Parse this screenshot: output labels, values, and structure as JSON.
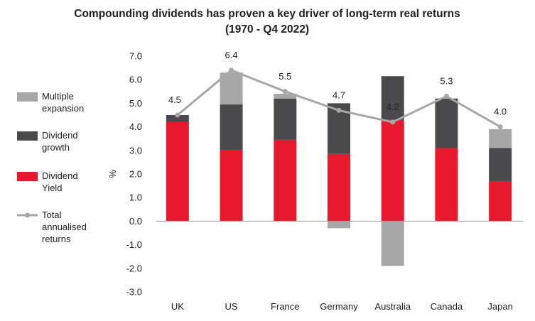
{
  "chart_data": {
    "type": "bar",
    "title_line1": "Compounding dividends has proven a key driver of long-term real returns",
    "title_line2": "(1970 - Q4 2022)",
    "ylabel": "%",
    "ylim": [
      -3.0,
      7.0
    ],
    "yticks": [
      "7.0",
      "6.0",
      "5.0",
      "4.0",
      "3.0",
      "2.0",
      "1.0",
      "0.0",
      "-1.0",
      "-2.0",
      "-3.0"
    ],
    "categories": [
      "UK",
      "US",
      "France",
      "Germany",
      "Australia",
      "Canada",
      "Japan"
    ],
    "series": [
      {
        "name": "Dividend Yield",
        "color": "#e8192c",
        "values": [
          4.2,
          3.0,
          3.45,
          2.85,
          4.3,
          3.1,
          1.7
        ]
      },
      {
        "name": "Dividend growth",
        "color": "#4a4a4d",
        "values": [
          0.3,
          1.95,
          1.75,
          2.15,
          1.85,
          2.1,
          1.4
        ]
      },
      {
        "name": "Multiple expansion",
        "color": "#a7a7a7",
        "values": [
          0.0,
          1.35,
          0.2,
          -0.3,
          -1.9,
          0.0,
          0.8
        ]
      }
    ],
    "line": {
      "name": "Total annualised returns",
      "color": "#a7a7a7",
      "values": [
        4.5,
        6.4,
        5.5,
        4.7,
        4.2,
        5.3,
        4.0
      ],
      "labels": [
        "4.5",
        "6.4",
        "5.5",
        "4.7",
        "4.2",
        "5.3",
        "4.0"
      ]
    },
    "legend": [
      {
        "key": "multiple",
        "lines": [
          "Multiple",
          "expansion"
        ],
        "color": "#a7a7a7",
        "kind": "box"
      },
      {
        "key": "growth",
        "lines": [
          "Dividend",
          "growth"
        ],
        "color": "#4a4a4d",
        "kind": "box"
      },
      {
        "key": "yield",
        "lines": [
          "Dividend",
          "Yield"
        ],
        "color": "#e8192c",
        "kind": "box"
      },
      {
        "key": "total",
        "lines": [
          "Total",
          "annualised",
          "returns"
        ],
        "color": "#a7a7a7",
        "kind": "line"
      }
    ],
    "legend_position": "left",
    "grid": false
  }
}
